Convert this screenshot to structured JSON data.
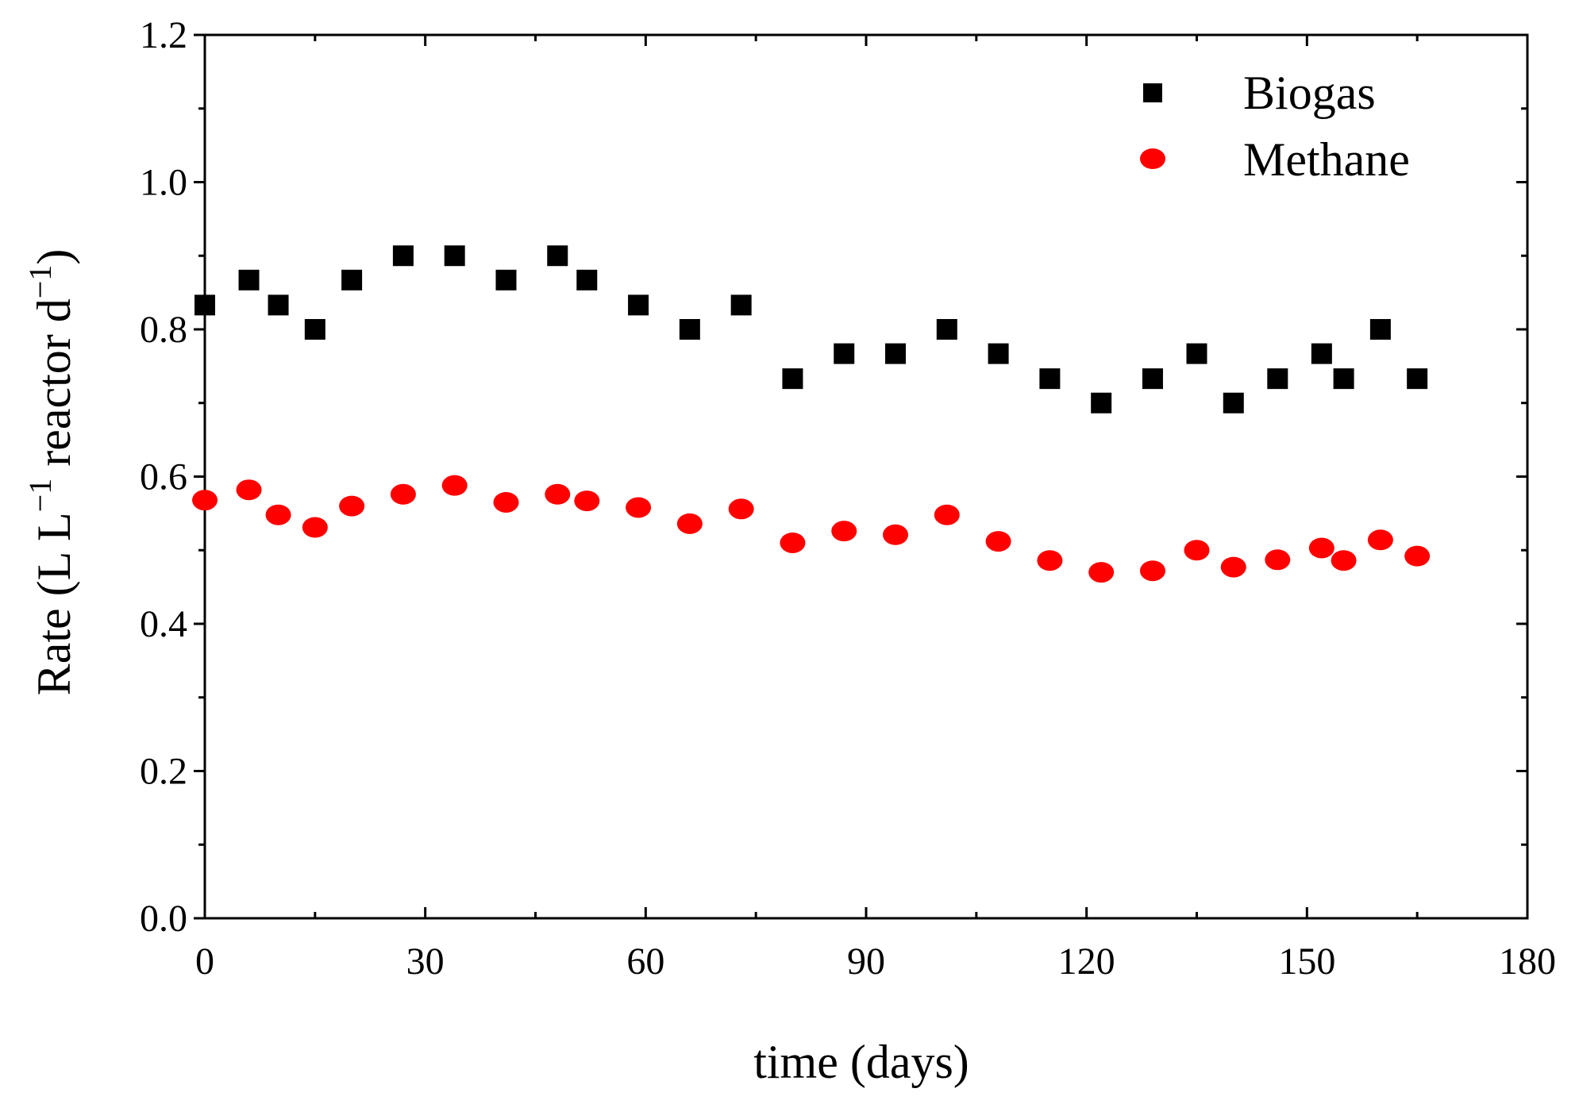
{
  "chart_data": {
    "type": "scatter",
    "title": "",
    "xlabel": "time (days)",
    "ylabel_parts": [
      "Rate (L L",
      "−1",
      " reactor d",
      "−1",
      ")"
    ],
    "xlim": [
      0,
      180
    ],
    "ylim": [
      0.0,
      1.2
    ],
    "x_ticks": [
      0,
      30,
      60,
      90,
      120,
      150,
      180
    ],
    "x_tick_labels": [
      "0",
      "30",
      "60",
      "90",
      "120",
      "150",
      "180"
    ],
    "y_ticks": [
      0.0,
      0.2,
      0.4,
      0.6,
      0.8,
      1.0,
      1.2
    ],
    "y_tick_labels": [
      "0.0",
      "0.2",
      "0.4",
      "0.6",
      "0.8",
      "1.0",
      "1.2"
    ],
    "x_minor_step": 15,
    "y_minor_step": 0.1,
    "grid": false,
    "legend_position": "top-right",
    "series": [
      {
        "name": "Biogas",
        "marker": "square",
        "color": "#000000",
        "x": [
          0,
          6,
          10,
          15,
          20,
          27,
          34,
          41,
          48,
          52,
          59,
          66,
          73,
          80,
          87,
          94,
          101,
          108,
          115,
          122,
          129,
          135,
          140,
          146,
          152,
          155,
          160,
          165
        ],
        "y": [
          0.833,
          0.867,
          0.833,
          0.8,
          0.867,
          0.9,
          0.9,
          0.867,
          0.9,
          0.867,
          0.833,
          0.8,
          0.833,
          0.733,
          0.767,
          0.767,
          0.8,
          0.767,
          0.733,
          0.7,
          0.733,
          0.767,
          0.7,
          0.733,
          0.767,
          0.733,
          0.8,
          0.733
        ]
      },
      {
        "name": "Methane",
        "marker": "circle",
        "color": "#ff0000",
        "x": [
          0,
          6,
          10,
          15,
          20,
          27,
          34,
          41,
          48,
          52,
          59,
          66,
          73,
          80,
          87,
          94,
          101,
          108,
          115,
          122,
          129,
          135,
          140,
          146,
          152,
          155,
          160,
          165
        ],
        "y": [
          0.568,
          0.582,
          0.548,
          0.531,
          0.56,
          0.576,
          0.588,
          0.565,
          0.576,
          0.567,
          0.558,
          0.536,
          0.556,
          0.51,
          0.526,
          0.521,
          0.548,
          0.512,
          0.486,
          0.47,
          0.472,
          0.5,
          0.477,
          0.487,
          0.503,
          0.486,
          0.514,
          0.492
        ]
      }
    ]
  }
}
